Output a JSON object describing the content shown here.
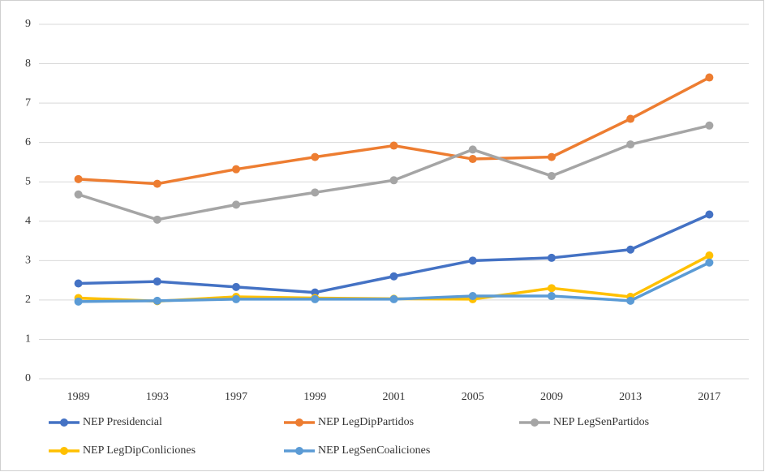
{
  "chart_data": {
    "type": "line",
    "categories": [
      "1989",
      "1993",
      "1997",
      "1999",
      "2001",
      "2005",
      "2009",
      "2013",
      "2017"
    ],
    "series": [
      {
        "name": "NEP Presidencial",
        "color": "#4472c4",
        "values": [
          2.42,
          2.47,
          2.33,
          2.19,
          2.6,
          3.0,
          3.07,
          3.28,
          4.17
        ]
      },
      {
        "name": "NEP LegDipPartidos",
        "color": "#ed7d31",
        "values": [
          5.07,
          4.95,
          5.32,
          5.63,
          5.92,
          5.58,
          5.63,
          6.6,
          7.65
        ]
      },
      {
        "name": "NEP LegSenPartidos",
        "color": "#a5a5a5",
        "values": [
          4.68,
          4.04,
          4.42,
          4.73,
          5.04,
          5.82,
          5.15,
          5.95,
          6.43
        ]
      },
      {
        "name": "NEP LegDipConliciones",
        "color": "#ffc000",
        "values": [
          2.05,
          1.97,
          2.08,
          2.05,
          2.03,
          2.02,
          2.3,
          2.08,
          3.13
        ]
      },
      {
        "name": "NEP LegSenCoaliciones",
        "color": "#5b9bd5",
        "values": [
          1.96,
          1.98,
          2.02,
          2.02,
          2.02,
          2.1,
          2.1,
          1.98,
          2.95
        ]
      }
    ],
    "ylim": [
      0,
      9
    ],
    "yticks": [
      0,
      1,
      2,
      3,
      4,
      5,
      6,
      7,
      8,
      9
    ],
    "grid": true,
    "legend": "bottom"
  }
}
